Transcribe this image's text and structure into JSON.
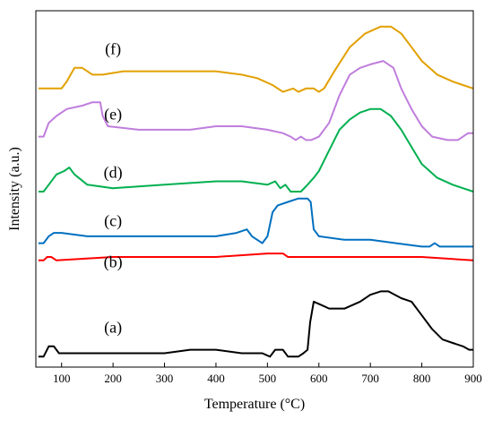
{
  "chart_data": {
    "type": "line",
    "title": "",
    "xlabel": "Temperature (°C)",
    "ylabel": "Intensity (a.u.)",
    "xlim": [
      50,
      900
    ],
    "x_ticks": [
      100,
      200,
      300,
      400,
      500,
      600,
      700,
      800,
      900
    ],
    "y_ticks_shown": false,
    "grid": false,
    "legend": "none",
    "series": [
      {
        "name": "(a)",
        "color": "#000000",
        "label_at": [
          200,
          0.09
        ],
        "points": [
          [
            55,
            0.02
          ],
          [
            65,
            0.02
          ],
          [
            75,
            0.05
          ],
          [
            85,
            0.05
          ],
          [
            95,
            0.03
          ],
          [
            150,
            0.03
          ],
          [
            250,
            0.03
          ],
          [
            300,
            0.03
          ],
          [
            350,
            0.04
          ],
          [
            400,
            0.04
          ],
          [
            450,
            0.03
          ],
          [
            490,
            0.03
          ],
          [
            505,
            0.02
          ],
          [
            515,
            0.04
          ],
          [
            530,
            0.04
          ],
          [
            540,
            0.02
          ],
          [
            560,
            0.02
          ],
          [
            570,
            0.03
          ],
          [
            578,
            0.04
          ],
          [
            583,
            0.12
          ],
          [
            590,
            0.18
          ],
          [
            605,
            0.17
          ],
          [
            620,
            0.16
          ],
          [
            650,
            0.16
          ],
          [
            680,
            0.18
          ],
          [
            700,
            0.2
          ],
          [
            720,
            0.21
          ],
          [
            735,
            0.21
          ],
          [
            760,
            0.19
          ],
          [
            780,
            0.18
          ],
          [
            800,
            0.14
          ],
          [
            820,
            0.1
          ],
          [
            840,
            0.07
          ],
          [
            860,
            0.06
          ],
          [
            880,
            0.05
          ],
          [
            892,
            0.04
          ],
          [
            900,
            0.04
          ]
        ]
      },
      {
        "name": "(b)",
        "color": "#ff0000",
        "label_at": [
          200,
          0.28
        ],
        "points": [
          [
            55,
            0.3
          ],
          [
            65,
            0.3
          ],
          [
            72,
            0.31
          ],
          [
            80,
            0.31
          ],
          [
            90,
            0.3
          ],
          [
            200,
            0.31
          ],
          [
            300,
            0.31
          ],
          [
            400,
            0.31
          ],
          [
            500,
            0.32
          ],
          [
            530,
            0.32
          ],
          [
            540,
            0.31
          ],
          [
            600,
            0.31
          ],
          [
            700,
            0.31
          ],
          [
            800,
            0.31
          ],
          [
            900,
            0.3
          ]
        ]
      },
      {
        "name": "(c)",
        "color": "#0070c0",
        "label_at": [
          200,
          0.4
        ],
        "points": [
          [
            55,
            0.35
          ],
          [
            65,
            0.35
          ],
          [
            75,
            0.37
          ],
          [
            85,
            0.38
          ],
          [
            100,
            0.38
          ],
          [
            150,
            0.37
          ],
          [
            250,
            0.37
          ],
          [
            350,
            0.37
          ],
          [
            400,
            0.37
          ],
          [
            440,
            0.38
          ],
          [
            460,
            0.39
          ],
          [
            470,
            0.37
          ],
          [
            480,
            0.36
          ],
          [
            490,
            0.35
          ],
          [
            500,
            0.37
          ],
          [
            510,
            0.44
          ],
          [
            520,
            0.46
          ],
          [
            540,
            0.47
          ],
          [
            560,
            0.48
          ],
          [
            578,
            0.48
          ],
          [
            584,
            0.47
          ],
          [
            590,
            0.39
          ],
          [
            600,
            0.37
          ],
          [
            650,
            0.36
          ],
          [
            700,
            0.36
          ],
          [
            750,
            0.35
          ],
          [
            800,
            0.34
          ],
          [
            815,
            0.34
          ],
          [
            825,
            0.35
          ],
          [
            835,
            0.34
          ],
          [
            900,
            0.34
          ]
        ]
      },
      {
        "name": "(d)",
        "color": "#00b050",
        "label_at": [
          200,
          0.54
        ],
        "points": [
          [
            55,
            0.5
          ],
          [
            65,
            0.5
          ],
          [
            75,
            0.52
          ],
          [
            90,
            0.55
          ],
          [
            105,
            0.56
          ],
          [
            115,
            0.57
          ],
          [
            125,
            0.55
          ],
          [
            150,
            0.52
          ],
          [
            200,
            0.51
          ],
          [
            300,
            0.52
          ],
          [
            400,
            0.53
          ],
          [
            450,
            0.53
          ],
          [
            500,
            0.52
          ],
          [
            515,
            0.53
          ],
          [
            525,
            0.51
          ],
          [
            535,
            0.52
          ],
          [
            545,
            0.5
          ],
          [
            565,
            0.5
          ],
          [
            578,
            0.52
          ],
          [
            590,
            0.54
          ],
          [
            600,
            0.56
          ],
          [
            620,
            0.62
          ],
          [
            640,
            0.68
          ],
          [
            660,
            0.71
          ],
          [
            680,
            0.73
          ],
          [
            700,
            0.74
          ],
          [
            720,
            0.74
          ],
          [
            740,
            0.72
          ],
          [
            760,
            0.68
          ],
          [
            780,
            0.63
          ],
          [
            800,
            0.58
          ],
          [
            830,
            0.54
          ],
          [
            860,
            0.52
          ],
          [
            880,
            0.51
          ],
          [
            900,
            0.5
          ]
        ]
      },
      {
        "name": "(e)",
        "color": "#c07ddd",
        "label_at": [
          200,
          0.71
        ],
        "points": [
          [
            55,
            0.66
          ],
          [
            65,
            0.66
          ],
          [
            75,
            0.7
          ],
          [
            90,
            0.72
          ],
          [
            110,
            0.74
          ],
          [
            140,
            0.75
          ],
          [
            160,
            0.76
          ],
          [
            175,
            0.76
          ],
          [
            180,
            0.72
          ],
          [
            190,
            0.69
          ],
          [
            250,
            0.68
          ],
          [
            350,
            0.68
          ],
          [
            400,
            0.69
          ],
          [
            450,
            0.69
          ],
          [
            500,
            0.68
          ],
          [
            530,
            0.67
          ],
          [
            545,
            0.66
          ],
          [
            555,
            0.65
          ],
          [
            565,
            0.66
          ],
          [
            575,
            0.65
          ],
          [
            585,
            0.65
          ],
          [
            600,
            0.66
          ],
          [
            620,
            0.7
          ],
          [
            640,
            0.78
          ],
          [
            660,
            0.84
          ],
          [
            680,
            0.86
          ],
          [
            700,
            0.87
          ],
          [
            725,
            0.88
          ],
          [
            745,
            0.86
          ],
          [
            760,
            0.8
          ],
          [
            780,
            0.74
          ],
          [
            800,
            0.69
          ],
          [
            820,
            0.66
          ],
          [
            850,
            0.65
          ],
          [
            870,
            0.65
          ],
          [
            890,
            0.67
          ],
          [
            900,
            0.67
          ]
        ]
      },
      {
        "name": "(f)",
        "color": "#e2a000",
        "label_at": [
          200,
          0.9
        ],
        "points": [
          [
            55,
            0.8
          ],
          [
            100,
            0.8
          ],
          [
            110,
            0.82
          ],
          [
            125,
            0.86
          ],
          [
            140,
            0.86
          ],
          [
            160,
            0.84
          ],
          [
            180,
            0.84
          ],
          [
            220,
            0.85
          ],
          [
            280,
            0.85
          ],
          [
            350,
            0.85
          ],
          [
            400,
            0.85
          ],
          [
            450,
            0.84
          ],
          [
            480,
            0.83
          ],
          [
            510,
            0.81
          ],
          [
            530,
            0.79
          ],
          [
            550,
            0.8
          ],
          [
            560,
            0.79
          ],
          [
            575,
            0.8
          ],
          [
            590,
            0.8
          ],
          [
            600,
            0.79
          ],
          [
            610,
            0.8
          ],
          [
            630,
            0.85
          ],
          [
            660,
            0.92
          ],
          [
            690,
            0.96
          ],
          [
            720,
            0.98
          ],
          [
            740,
            0.98
          ],
          [
            760,
            0.96
          ],
          [
            780,
            0.92
          ],
          [
            800,
            0.88
          ],
          [
            830,
            0.84
          ],
          [
            860,
            0.82
          ],
          [
            880,
            0.81
          ],
          [
            900,
            0.8
          ]
        ]
      }
    ]
  }
}
